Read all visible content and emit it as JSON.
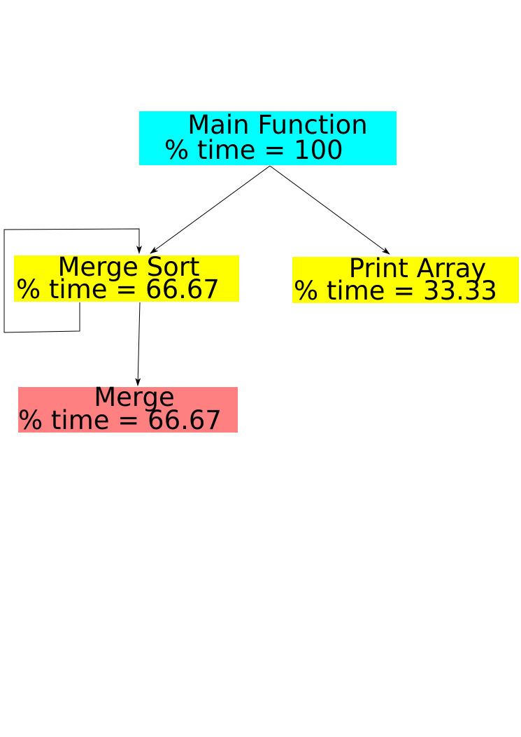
{
  "colors": {
    "main": "#00ffff",
    "mergesort": "#ffff00",
    "printarray": "#ffff00",
    "merge": "#ff8080",
    "edge": "#000000"
  },
  "nodes": {
    "main": {
      "name": "Main Function",
      "time": "% time = 100"
    },
    "mergesort": {
      "name": "Merge Sort",
      "time": "% time = 66.67"
    },
    "printarray": {
      "name": "Print Array",
      "time": "% time = 33.33"
    },
    "merge": {
      "name": "Merge",
      "time": "% time = 66.67"
    }
  },
  "edges": [
    {
      "from": "main",
      "to": "mergesort"
    },
    {
      "from": "main",
      "to": "printarray"
    },
    {
      "from": "mergesort",
      "to": "mergesort"
    },
    {
      "from": "mergesort",
      "to": "merge"
    }
  ]
}
